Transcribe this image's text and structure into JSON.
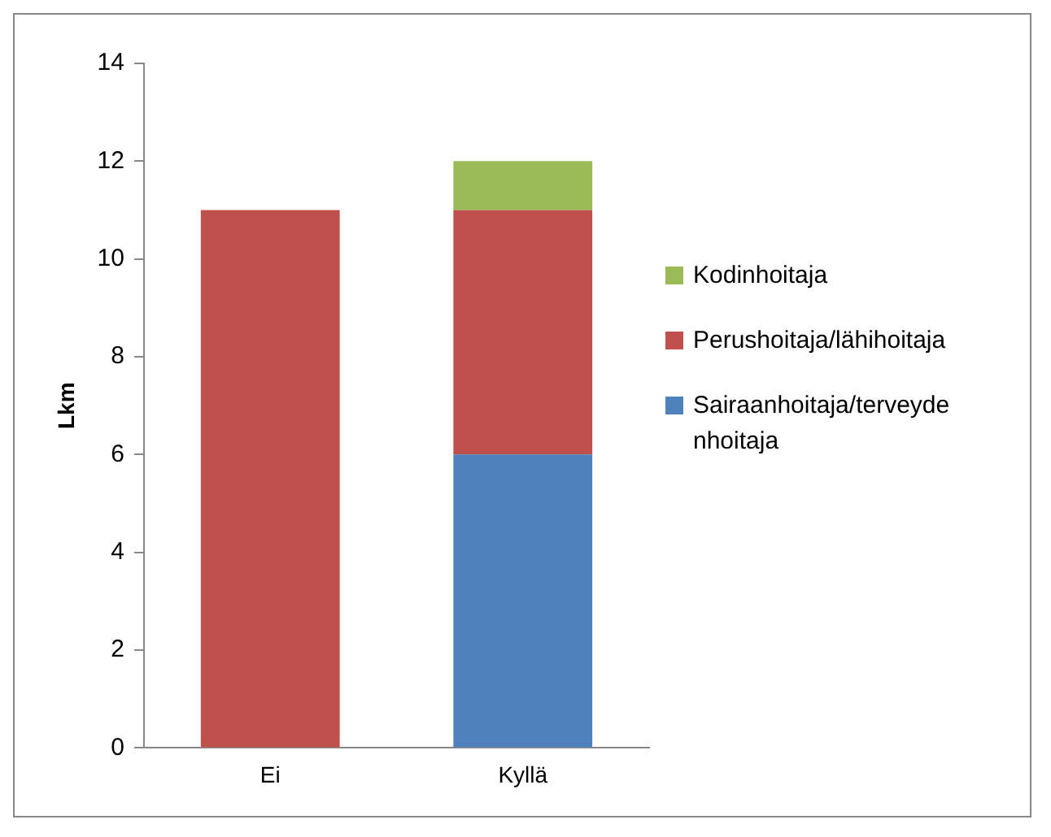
{
  "chart_data": {
    "type": "bar",
    "stacked": true,
    "ylabel": "Lkm",
    "categories": [
      "Ei",
      "Kyllä"
    ],
    "series": [
      {
        "name": "Sairaanhoitaja/terveydenhoitaja",
        "color": "#4f81bd",
        "values": [
          0,
          6
        ]
      },
      {
        "name": "Perushoitaja/lähihoitaja",
        "color": "#c0504d",
        "values": [
          11,
          5
        ]
      },
      {
        "name": "Kodinhoitaja",
        "color": "#9bbb59",
        "values": [
          0,
          1
        ]
      }
    ],
    "ylim": [
      0,
      14
    ],
    "yticks": [
      0,
      2,
      4,
      6,
      8,
      10,
      12,
      14
    ],
    "grid": false,
    "legend": "right"
  }
}
